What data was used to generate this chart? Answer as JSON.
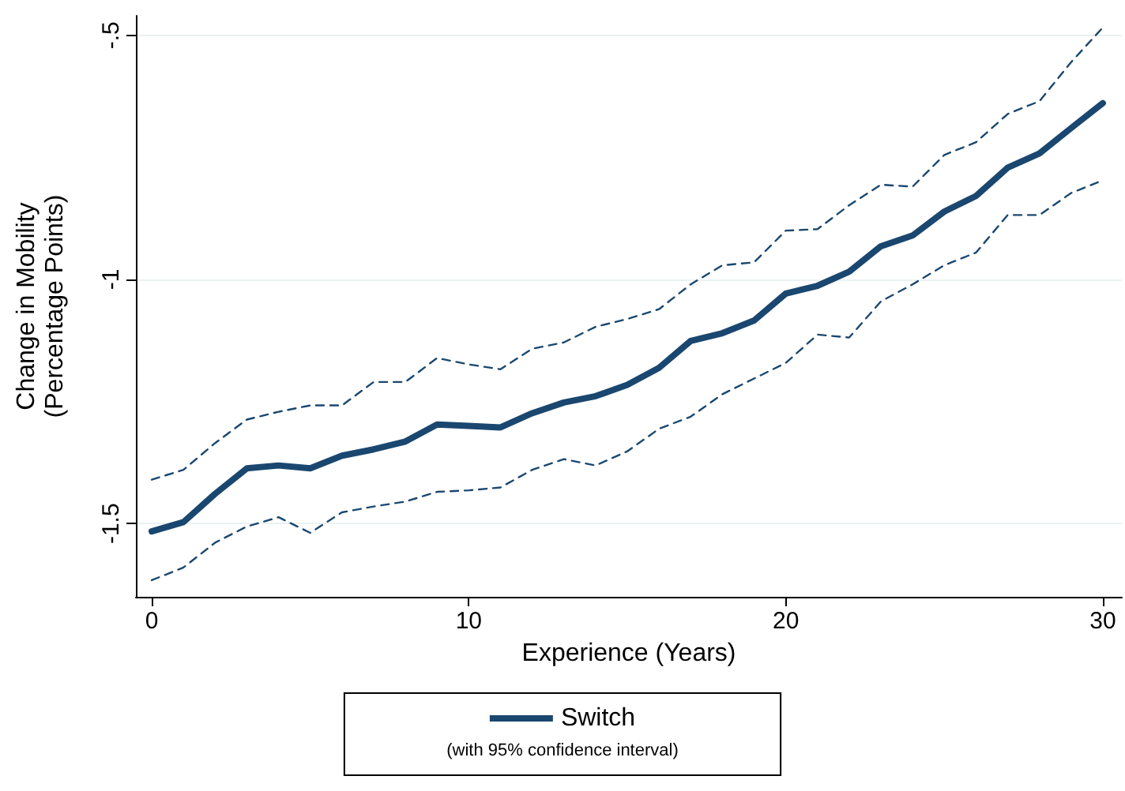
{
  "chart_data": {
    "type": "line",
    "xlabel": "Experience (Years)",
    "ylabel": "Change in Mobility\n(Percentage Points)",
    "x": [
      0,
      1,
      2,
      3,
      4,
      5,
      6,
      7,
      8,
      9,
      10,
      11,
      12,
      13,
      14,
      15,
      16,
      17,
      18,
      19,
      20,
      21,
      22,
      23,
      24,
      25,
      26,
      27,
      28,
      29,
      30
    ],
    "series": [
      {
        "name": "Switch",
        "color": "#1a476f",
        "line_style": "solid",
        "values": [
          -1.516,
          -1.497,
          -1.439,
          -1.387,
          -1.381,
          -1.387,
          -1.361,
          -1.348,
          -1.332,
          -1.297,
          -1.3,
          -1.303,
          -1.274,
          -1.252,
          -1.239,
          -1.216,
          -1.181,
          -1.126,
          -1.11,
          -1.084,
          -1.029,
          -1.013,
          -0.984,
          -0.932,
          -0.91,
          -0.861,
          -0.829,
          -0.771,
          -0.742,
          -0.69,
          -0.639
        ]
      },
      {
        "color": "#1a476f",
        "line_style": "dashed",
        "values": [
          -1.41,
          -1.39,
          -1.335,
          -1.287,
          -1.271,
          -1.258,
          -1.258,
          -1.21,
          -1.21,
          -1.161,
          -1.174,
          -1.184,
          -1.142,
          -1.129,
          -1.097,
          -1.081,
          -1.061,
          -1.01,
          -0.971,
          -0.965,
          -0.9,
          -0.897,
          -0.848,
          -0.806,
          -0.81,
          -0.745,
          -0.719,
          -0.661,
          -0.635,
          -0.555,
          -0.484
        ]
      },
      {
        "color": "#1a476f",
        "line_style": "dashed",
        "values": [
          -1.616,
          -1.59,
          -1.539,
          -1.506,
          -1.487,
          -1.519,
          -1.477,
          -1.465,
          -1.455,
          -1.435,
          -1.432,
          -1.426,
          -1.39,
          -1.368,
          -1.381,
          -1.352,
          -1.306,
          -1.281,
          -1.235,
          -1.203,
          -1.171,
          -1.113,
          -1.119,
          -1.045,
          -1.01,
          -0.971,
          -0.945,
          -0.868,
          -0.868,
          -0.823,
          -0.797
        ]
      }
    ],
    "annotations": [
      "(with 95% confidence interval)"
    ],
    "xlim": [
      -0.5,
      30.6
    ],
    "xticks": [
      0,
      10,
      20,
      30
    ],
    "ylim": [
      -1.65,
      -0.46
    ],
    "yticks": [
      {
        "value": -1.5,
        "label": "-1.5"
      },
      {
        "value": -1,
        "label": "-1"
      },
      {
        "value": -0.5,
        "label": "-.5"
      }
    ],
    "grid": "y",
    "legend": "bottom",
    "marker": "none"
  }
}
